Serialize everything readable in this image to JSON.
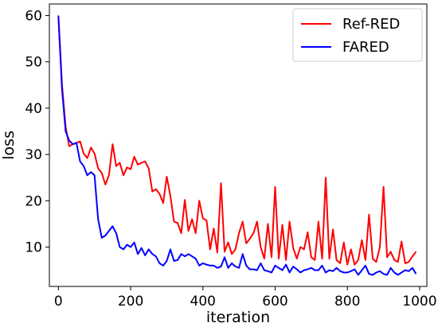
{
  "chart_data": {
    "type": "line",
    "xlabel": "iteration",
    "ylabel": "loss",
    "xlim": [
      -25,
      1020
    ],
    "ylim": [
      1.5,
      62.5
    ],
    "xticks": [
      0,
      200,
      400,
      600,
      800,
      1000
    ],
    "yticks": [
      10,
      20,
      30,
      40,
      50,
      60
    ],
    "grid": false,
    "legend_position": "top-right",
    "series": [
      {
        "name": "Ref-RED",
        "color": "#ff0000",
        "x": [
          0,
          10,
          20,
          30,
          40,
          50,
          60,
          70,
          80,
          90,
          100,
          110,
          120,
          130,
          140,
          150,
          160,
          170,
          180,
          190,
          200,
          210,
          220,
          230,
          240,
          250,
          260,
          270,
          280,
          290,
          300,
          310,
          320,
          330,
          340,
          350,
          360,
          370,
          380,
          390,
          400,
          410,
          420,
          430,
          440,
          450,
          460,
          470,
          480,
          490,
          500,
          510,
          520,
          530,
          540,
          550,
          560,
          570,
          580,
          590,
          600,
          610,
          620,
          630,
          640,
          650,
          660,
          670,
          680,
          690,
          700,
          710,
          720,
          730,
          740,
          750,
          760,
          770,
          780,
          790,
          800,
          810,
          820,
          830,
          840,
          850,
          860,
          870,
          880,
          890,
          900,
          910,
          920,
          930,
          940,
          950,
          960,
          970,
          980,
          990
        ],
        "values": [
          60.0,
          45.0,
          36.0,
          31.8,
          32.2,
          32.5,
          32.8,
          30.2,
          29.2,
          31.5,
          30.2,
          27.0,
          26.0,
          23.5,
          25.5,
          32.2,
          27.5,
          28.2,
          25.5,
          27.2,
          26.8,
          29.5,
          27.8,
          28.2,
          28.5,
          27.0,
          22.0,
          22.5,
          21.5,
          19.5,
          25.2,
          21.0,
          15.5,
          15.2,
          13.0,
          20.2,
          13.5,
          16.0,
          13.0,
          20.0,
          16.2,
          15.8,
          9.5,
          14.0,
          8.8,
          23.8,
          9.0,
          11.0,
          8.5,
          9.5,
          13.0,
          15.5,
          10.8,
          11.8,
          13.0,
          15.5,
          10.0,
          7.5,
          15.0,
          7.8,
          23.0,
          7.5,
          14.8,
          7.2,
          15.5,
          9.8,
          7.5,
          10.0,
          9.5,
          13.2,
          7.8,
          7.2,
          15.5,
          7.5,
          25.0,
          7.5,
          13.8,
          7.2,
          6.5,
          11.0,
          6.2,
          9.5,
          6.2,
          7.2,
          11.5,
          7.2,
          17.0,
          7.5,
          6.8,
          10.0,
          23.0,
          7.8,
          9.0,
          7.2,
          6.8,
          11.2,
          6.5,
          6.8,
          8.0,
          9.0
        ]
      },
      {
        "name": "FARED",
        "color": "#0000ff",
        "x": [
          0,
          10,
          20,
          30,
          40,
          50,
          60,
          70,
          80,
          90,
          100,
          110,
          120,
          130,
          140,
          150,
          160,
          170,
          180,
          190,
          200,
          210,
          220,
          230,
          240,
          250,
          260,
          270,
          280,
          290,
          300,
          310,
          320,
          330,
          340,
          350,
          360,
          370,
          380,
          390,
          400,
          410,
          420,
          430,
          440,
          450,
          460,
          470,
          480,
          490,
          500,
          510,
          520,
          530,
          540,
          550,
          560,
          570,
          580,
          590,
          600,
          610,
          620,
          630,
          640,
          650,
          660,
          670,
          680,
          690,
          700,
          710,
          720,
          730,
          740,
          750,
          760,
          770,
          780,
          790,
          800,
          810,
          820,
          830,
          840,
          850,
          860,
          870,
          880,
          890,
          900,
          910,
          920,
          930,
          940,
          950,
          960,
          970,
          980,
          990
        ],
        "values": [
          60.0,
          44.0,
          35.0,
          33.0,
          32.2,
          32.5,
          28.5,
          27.5,
          25.5,
          26.2,
          25.5,
          16.0,
          12.0,
          12.5,
          13.5,
          14.5,
          13.0,
          10.0,
          9.5,
          10.5,
          10.0,
          11.0,
          8.5,
          9.8,
          8.2,
          9.5,
          8.5,
          8.0,
          6.5,
          6.0,
          7.0,
          9.5,
          7.0,
          7.2,
          8.5,
          8.0,
          8.5,
          8.0,
          7.5,
          6.0,
          6.5,
          6.2,
          6.0,
          6.0,
          5.5,
          5.8,
          7.8,
          5.5,
          6.5,
          5.8,
          5.5,
          8.5,
          6.0,
          5.2,
          5.2,
          5.0,
          6.5,
          5.0,
          4.8,
          4.5,
          6.0,
          5.5,
          5.0,
          6.2,
          4.5,
          5.8,
          5.2,
          4.5,
          5.0,
          5.2,
          5.5,
          5.0,
          5.0,
          6.0,
          4.5,
          5.0,
          4.8,
          5.5,
          4.8,
          4.5,
          4.5,
          4.8,
          5.2,
          4.0,
          5.0,
          6.0,
          4.2,
          4.0,
          4.5,
          4.8,
          4.2,
          4.0,
          5.5,
          4.5,
          4.0,
          4.5,
          5.0,
          4.8,
          5.5,
          4.2
        ]
      }
    ]
  }
}
